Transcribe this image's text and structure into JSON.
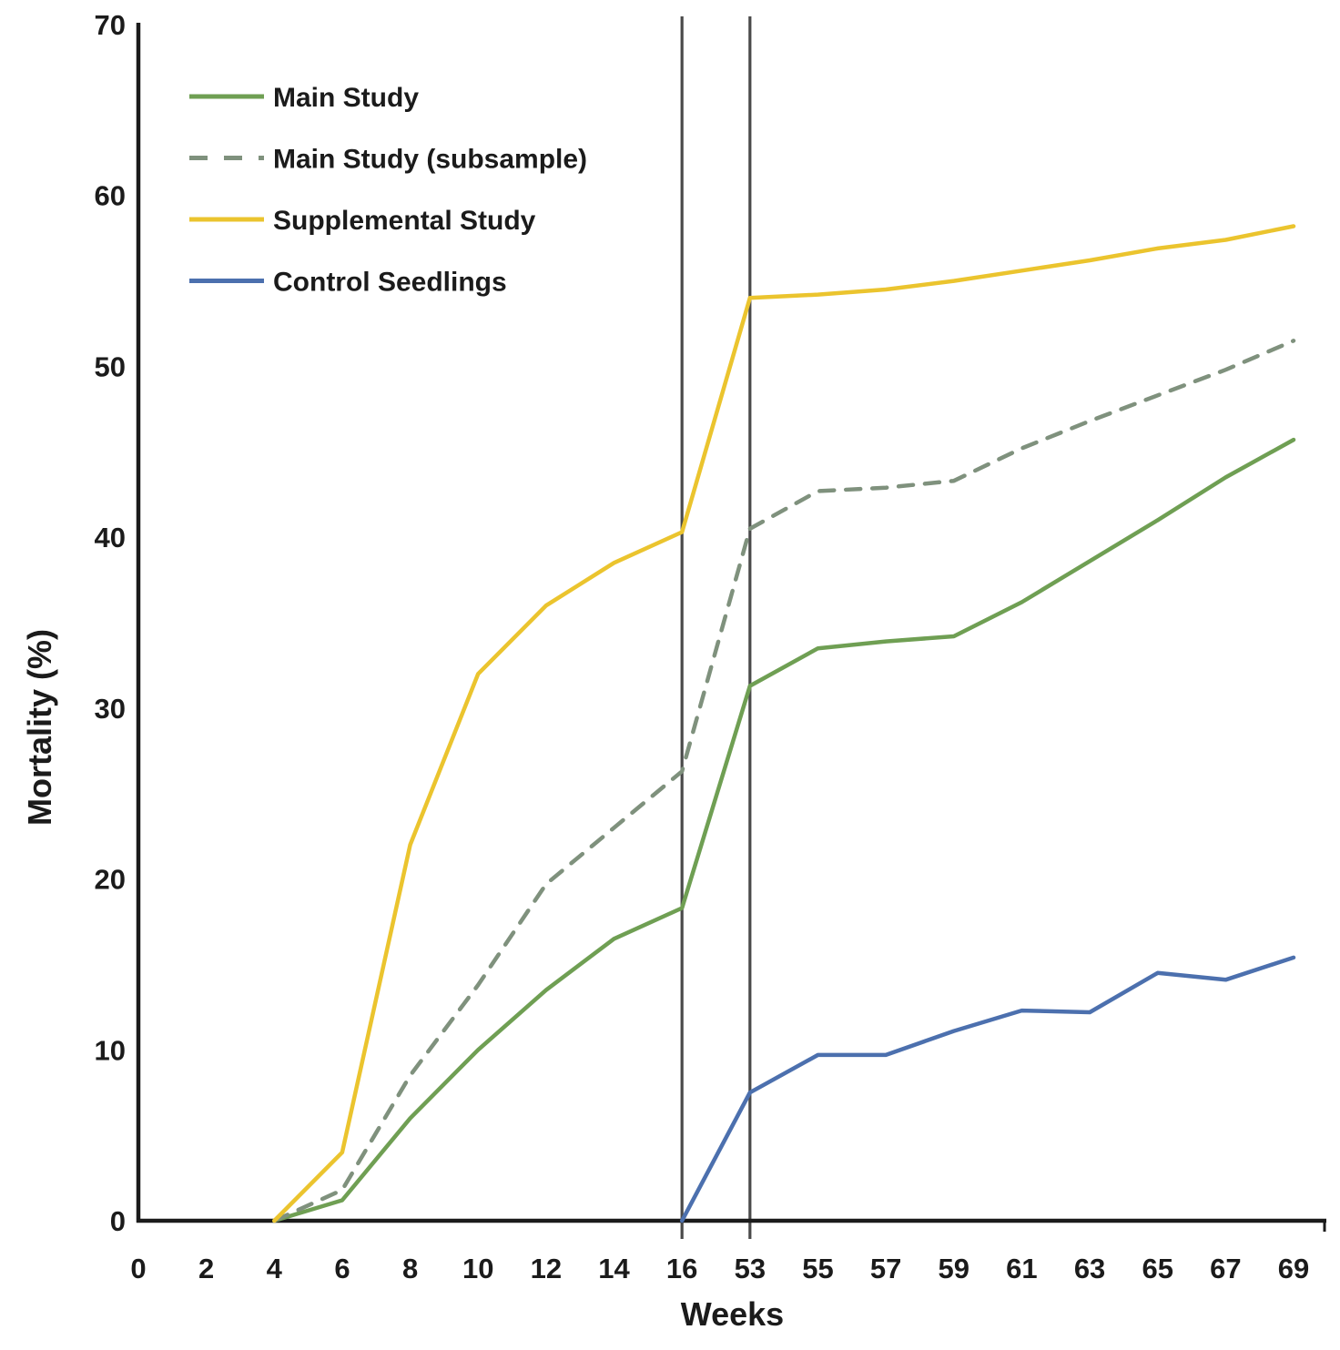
{
  "chart_data": {
    "type": "line",
    "title": "",
    "xlabel": "Weeks",
    "ylabel": "Mortality (%)",
    "ylim": [
      0,
      70
    ],
    "yticks": [
      0,
      10,
      20,
      30,
      40,
      50,
      60,
      70
    ],
    "x_categories": [
      0,
      2,
      4,
      6,
      8,
      10,
      12,
      14,
      16,
      53,
      55,
      57,
      59,
      61,
      63,
      65,
      67,
      69
    ],
    "axis_break": {
      "between": [
        16,
        53
      ],
      "line_categories": [
        16,
        53
      ],
      "line_color": "#4a4a4a"
    },
    "grid": "off",
    "legend_position": "top-left",
    "axis_color": "#1b1b1b",
    "series": [
      {
        "name": "Main Study",
        "color": "#6F9F53",
        "style": "solid",
        "points": [
          [
            4,
            0
          ],
          [
            6,
            1.2
          ],
          [
            8,
            6
          ],
          [
            10,
            10
          ],
          [
            12,
            13.5
          ],
          [
            14,
            16.5
          ],
          [
            16,
            18.3
          ],
          [
            53,
            31.3
          ],
          [
            55,
            33.5
          ],
          [
            57,
            33.9
          ],
          [
            59,
            34.2
          ],
          [
            61,
            36.2
          ],
          [
            63,
            38.6
          ],
          [
            65,
            41
          ],
          [
            67,
            43.5
          ],
          [
            69,
            45.7
          ]
        ]
      },
      {
        "name": "Main Study (subsample)",
        "color": "#7F917D",
        "style": "dashed",
        "points": [
          [
            4,
            0
          ],
          [
            6,
            1.8
          ],
          [
            8,
            8.5
          ],
          [
            10,
            13.8
          ],
          [
            12,
            19.7
          ],
          [
            14,
            23
          ],
          [
            16,
            26.3
          ],
          [
            53,
            40.5
          ],
          [
            55,
            42.7
          ],
          [
            57,
            42.9
          ],
          [
            59,
            43.3
          ],
          [
            61,
            45.2
          ],
          [
            63,
            46.8
          ],
          [
            65,
            48.3
          ],
          [
            67,
            49.8
          ],
          [
            69,
            51.5
          ]
        ]
      },
      {
        "name": "Supplemental Study",
        "color": "#EBC42E",
        "style": "solid",
        "points": [
          [
            4,
            0
          ],
          [
            6,
            4
          ],
          [
            8,
            22
          ],
          [
            10,
            32
          ],
          [
            12,
            36
          ],
          [
            14,
            38.5
          ],
          [
            16,
            40.3
          ],
          [
            53,
            54
          ],
          [
            55,
            54.2
          ],
          [
            57,
            54.5
          ],
          [
            59,
            55
          ],
          [
            61,
            55.6
          ],
          [
            63,
            56.2
          ],
          [
            65,
            56.9
          ],
          [
            67,
            57.4
          ],
          [
            69,
            58.2
          ]
        ]
      },
      {
        "name": "Control Seedlings",
        "color": "#4C70AE",
        "style": "solid",
        "points": [
          [
            16,
            0
          ],
          [
            53,
            7.5
          ],
          [
            55,
            9.7
          ],
          [
            57,
            9.7
          ],
          [
            59,
            11.1
          ],
          [
            61,
            12.3
          ],
          [
            63,
            12.2
          ],
          [
            65,
            14.5
          ],
          [
            67,
            14.1
          ],
          [
            69,
            15.4
          ]
        ]
      }
    ]
  }
}
